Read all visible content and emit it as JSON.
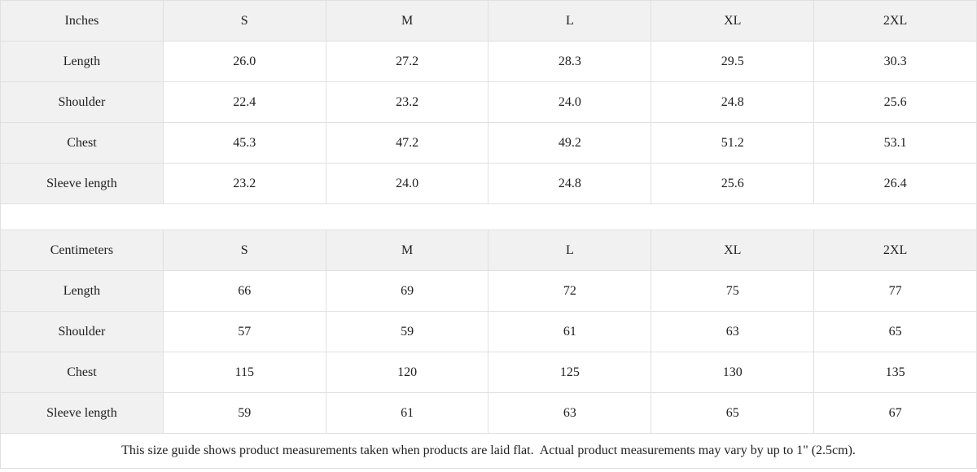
{
  "colors": {
    "header_background": "#f1f1f1",
    "border": "#e0e0e0",
    "text": "#202020",
    "cell_background": "#ffffff"
  },
  "tables": [
    {
      "unit": "Inches",
      "sizes": [
        "S",
        "M",
        "L",
        "XL",
        "2XL"
      ],
      "rows": [
        {
          "label": "Length",
          "values": [
            "26.0",
            "27.2",
            "28.3",
            "29.5",
            "30.3"
          ]
        },
        {
          "label": "Shoulder",
          "values": [
            "22.4",
            "23.2",
            "24.0",
            "24.8",
            "25.6"
          ]
        },
        {
          "label": "Chest",
          "values": [
            "45.3",
            "47.2",
            "49.2",
            "51.2",
            "53.1"
          ]
        },
        {
          "label": "Sleeve length",
          "values": [
            "23.2",
            "24.0",
            "24.8",
            "25.6",
            "26.4"
          ]
        }
      ]
    },
    {
      "unit": "Centimeters",
      "sizes": [
        "S",
        "M",
        "L",
        "XL",
        "2XL"
      ],
      "rows": [
        {
          "label": "Length",
          "values": [
            "66",
            "69",
            "72",
            "75",
            "77"
          ]
        },
        {
          "label": "Shoulder",
          "values": [
            "57",
            "59",
            "61",
            "63",
            "65"
          ]
        },
        {
          "label": "Chest",
          "values": [
            "115",
            "120",
            "125",
            "130",
            "135"
          ]
        },
        {
          "label": "Sleeve length",
          "values": [
            "59",
            "61",
            "63",
            "65",
            "67"
          ]
        }
      ]
    }
  ],
  "footer_note": "This size guide shows product measurements taken when products are laid flat.  Actual product measurements may vary by up to 1\" (2.5cm)."
}
